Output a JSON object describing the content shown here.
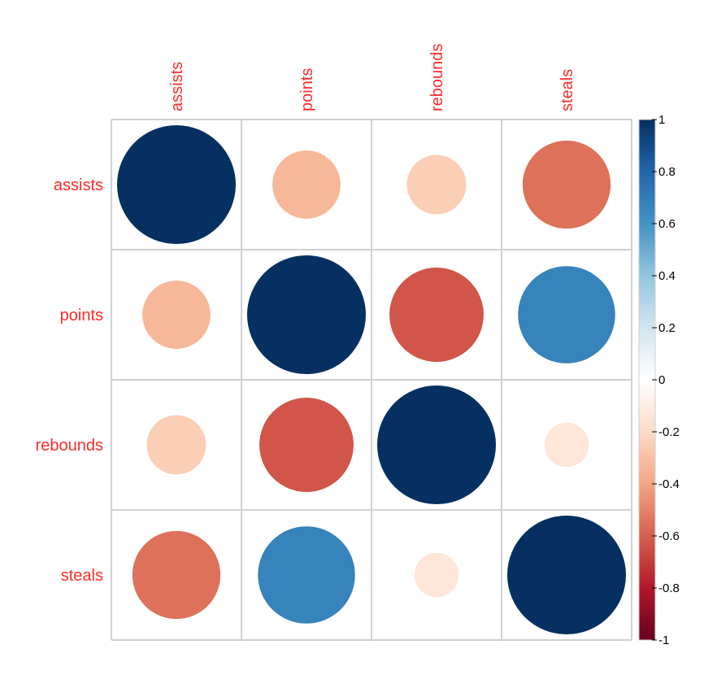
{
  "chart_data": {
    "type": "heatmap",
    "subtype": "correlation-circles",
    "variables": [
      "assists",
      "points",
      "rebounds",
      "steals"
    ],
    "row_labels": [
      "assists",
      "points",
      "rebounds",
      "steals"
    ],
    "col_labels": [
      "assists",
      "points",
      "rebounds",
      "steals"
    ],
    "matrix": [
      [
        1.0,
        -0.33,
        -0.25,
        -0.55
      ],
      [
        -0.33,
        1.0,
        -0.63,
        0.67
      ],
      [
        -0.25,
        -0.63,
        1.0,
        -0.14
      ],
      [
        -0.55,
        0.67,
        -0.14,
        1.0
      ]
    ],
    "color_scale": {
      "range": [
        -1,
        1
      ],
      "ticks": [
        1,
        0.8,
        0.6,
        0.4,
        0.2,
        0,
        -0.2,
        -0.4,
        -0.6,
        -0.8,
        -1
      ],
      "tick_labels": [
        "1",
        "0.8",
        "0.6",
        "0.4",
        "0.2",
        "0",
        "-0.2",
        "-0.4",
        "-0.6",
        "-0.8",
        "-1"
      ],
      "stops": [
        {
          "v": -1.0,
          "color": "#67001f"
        },
        {
          "v": -0.8,
          "color": "#b2182b"
        },
        {
          "v": -0.6,
          "color": "#d6604d"
        },
        {
          "v": -0.4,
          "color": "#f4a582"
        },
        {
          "v": -0.2,
          "color": "#fddbc7"
        },
        {
          "v": 0.0,
          "color": "#ffffff"
        },
        {
          "v": 0.2,
          "color": "#d1e5f0"
        },
        {
          "v": 0.4,
          "color": "#92c5de"
        },
        {
          "v": 0.6,
          "color": "#4393c3"
        },
        {
          "v": 0.8,
          "color": "#2166ac"
        },
        {
          "v": 1.0,
          "color": "#053061"
        }
      ]
    },
    "label_color": "#ff2a2a",
    "grid_color": "#d0d0d0"
  }
}
